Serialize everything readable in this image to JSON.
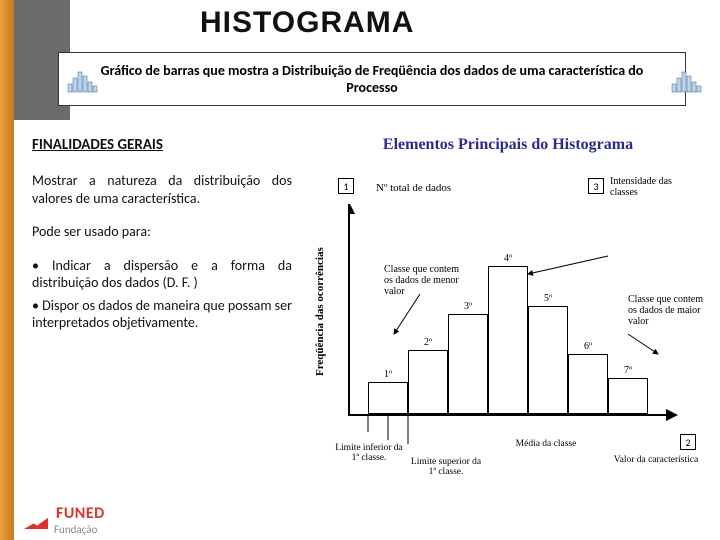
{
  "title": "HISTOGRAMA",
  "subtitle": "Gráfico de barras que mostra a Distribuição de Freqüência dos dados de uma característica do Processo",
  "left": {
    "heading": "FINALIDADES GERAIS",
    "p1": "Mostrar a natureza da distribuição dos valores de uma característica.",
    "p2": "Pode ser usado para:",
    "b1": "• Indicar a dispersão e a forma da distribuição dos dados (D. F. )",
    "b2": "• Dispor os dados de maneira que possam ser interpretados objetivamente."
  },
  "right": {
    "title": "Elementos Principais do Histograma",
    "ylabel": "Freqüência das ocorrências",
    "ntotal": "Nº total de dados",
    "intens": "Intensidade das classes",
    "callout1": "1",
    "callout2": "2",
    "callout3": "3",
    "classe_menor": "Classe que contem os dados de menor valor",
    "classe_maior": "Classe que contem os dados de maior valor",
    "lim_inf": "Limite inferior da 1ª classe.",
    "lim_sup": "Limite superior da 1ª classe.",
    "media": "Média da classe",
    "valor": "Valor da característica"
  },
  "bars": {
    "labels": [
      "1º",
      "2º",
      "3º",
      "4º",
      "5º",
      "6º",
      "7º"
    ],
    "heights": [
      32,
      64,
      100,
      148,
      108,
      60,
      36
    ],
    "color": "#ffffff",
    "border": "#000000",
    "width": 40
  },
  "colors": {
    "accent": "#e7a13a",
    "blue": "#2a2a8f"
  },
  "logo": {
    "brand": "FUNED",
    "sub": "Fundação"
  }
}
